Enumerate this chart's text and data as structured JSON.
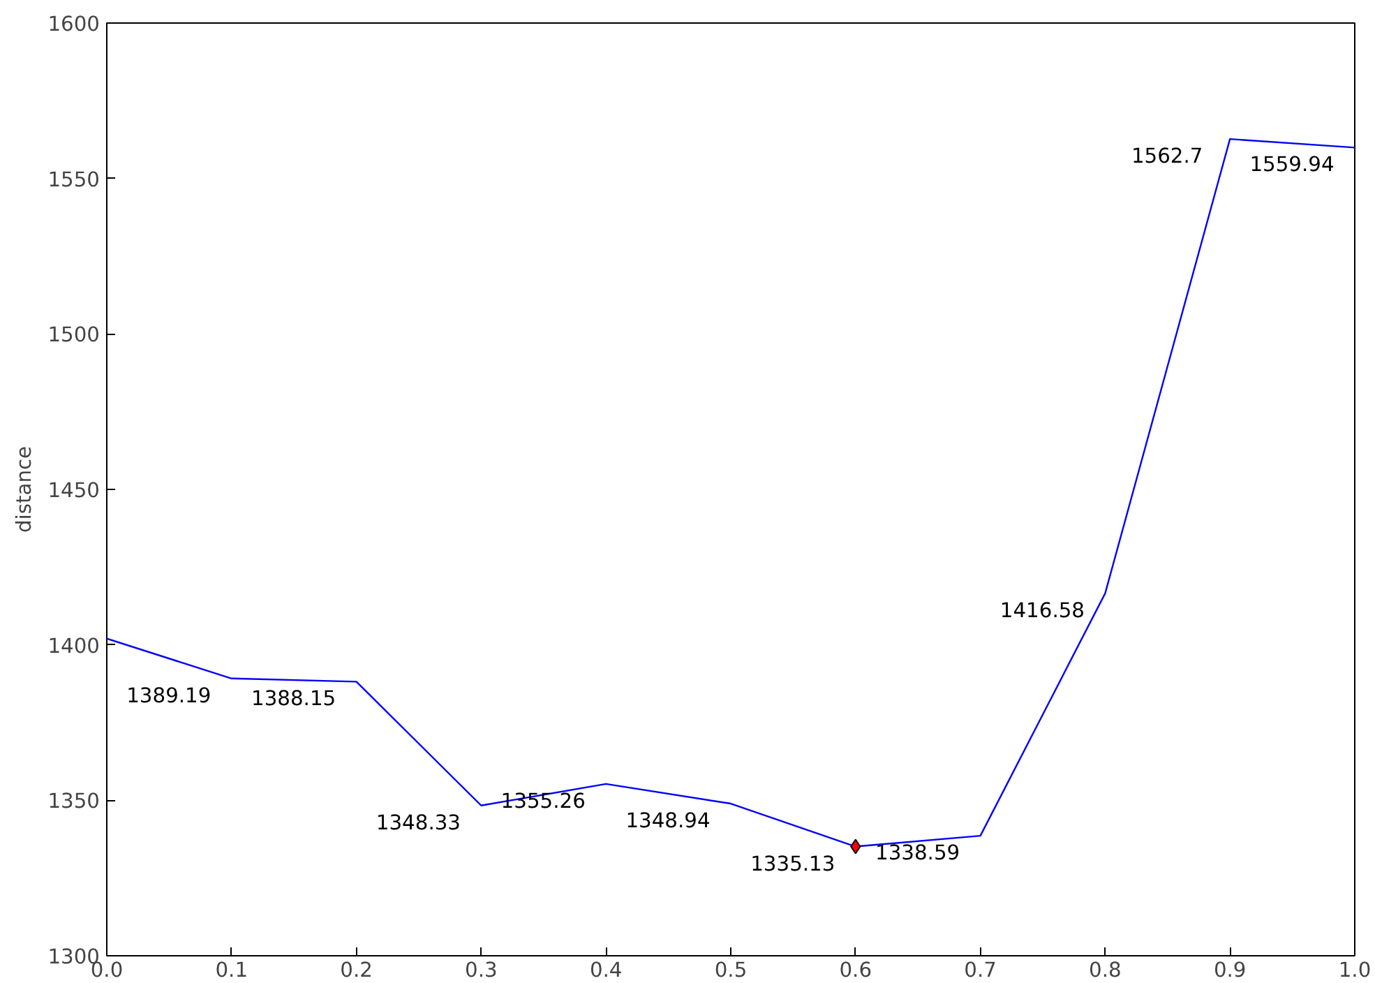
{
  "chart_data": {
    "type": "line",
    "ylabel": "distance",
    "x": [
      0.0,
      0.1,
      0.2,
      0.3,
      0.4,
      0.5,
      0.6,
      0.7,
      0.8,
      0.9,
      1.0
    ],
    "series": [
      {
        "color": "#0000ff",
        "values": [
          1402,
          1389.19,
          1388.15,
          1348.33,
          1355.26,
          1348.94,
          1335.13,
          1338.59,
          1416.58,
          1562.7,
          1559.94
        ],
        "value_labels": [
          null,
          "1389.19",
          "1388.15",
          "1348.33",
          "1355.26",
          "1348.94",
          "1335.13",
          "1338.59",
          "1416.58",
          "1562.7",
          "1559.94"
        ],
        "marker": "none"
      },
      {
        "type": "scatter",
        "x": [
          0.6
        ],
        "color": "#ff0000",
        "values": [
          1335.13
        ],
        "marker": "diamond"
      }
    ],
    "xlim": [
      0.0,
      1.0
    ],
    "ylim": [
      1300,
      1600
    ],
    "xticks": [
      {
        "value": 0.0,
        "label": "0.0"
      },
      {
        "value": 0.1,
        "label": "0.1"
      },
      {
        "value": 0.2,
        "label": "0.2"
      },
      {
        "value": 0.3,
        "label": "0.3"
      },
      {
        "value": 0.4,
        "label": "0.4"
      },
      {
        "value": 0.5,
        "label": "0.5"
      },
      {
        "value": 0.6,
        "label": "0.6"
      },
      {
        "value": 0.7,
        "label": "0.7"
      },
      {
        "value": 0.8,
        "label": "0.8"
      },
      {
        "value": 0.9,
        "label": "0.9"
      },
      {
        "value": 1.0,
        "label": "1.0"
      }
    ],
    "yticks": [
      1300,
      1350,
      1400,
      1450,
      1500,
      1550,
      1600
    ],
    "grid": false
  }
}
